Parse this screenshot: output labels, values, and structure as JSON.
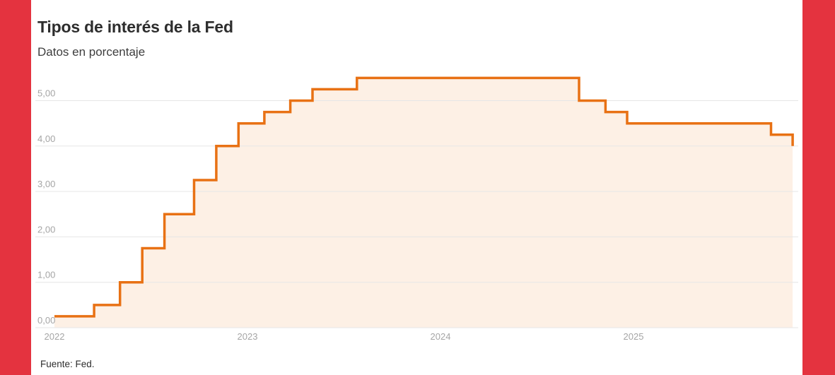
{
  "chart_data": {
    "type": "area",
    "variant": "step-after",
    "title": "Tipos de interés de la Fed",
    "subtitle": "Datos en porcentaje",
    "source": "Fuente: Fed.",
    "legend": "none",
    "grid": true,
    "x_axis": {
      "ticks": [
        2022,
        2023,
        2024,
        2025
      ],
      "tick_labels": [
        "2022",
        "2023",
        "2024",
        "2025"
      ],
      "range_years": [
        2022.0,
        2025.83
      ]
    },
    "y_axis": {
      "min": 0,
      "max": 5.5,
      "tick_step": 1,
      "tick_labels": [
        "0,00",
        "1,00",
        "2,00",
        "3,00",
        "4,00",
        "5,00"
      ],
      "tick_values": [
        0,
        1,
        2,
        3,
        4,
        5
      ]
    },
    "series": [
      {
        "name": "Tipo de interés de la Fed",
        "points": [
          {
            "date": "2022-01-01",
            "value": 0.25
          },
          {
            "date": "2022-03-17",
            "value": 0.5
          },
          {
            "date": "2022-05-05",
            "value": 1.0
          },
          {
            "date": "2022-06-16",
            "value": 1.75
          },
          {
            "date": "2022-07-28",
            "value": 2.5
          },
          {
            "date": "2022-09-22",
            "value": 3.25
          },
          {
            "date": "2022-11-03",
            "value": 4.0
          },
          {
            "date": "2022-12-15",
            "value": 4.5
          },
          {
            "date": "2023-02-02",
            "value": 4.75
          },
          {
            "date": "2023-03-23",
            "value": 5.0
          },
          {
            "date": "2023-05-04",
            "value": 5.25
          },
          {
            "date": "2023-07-27",
            "value": 5.5
          },
          {
            "date": "2024-09-19",
            "value": 5.0
          },
          {
            "date": "2024-11-08",
            "value": 4.75
          },
          {
            "date": "2024-12-19",
            "value": 4.5
          },
          {
            "date": "2025-09-18",
            "value": 4.25
          },
          {
            "date": "2025-10-29",
            "value": 4.0
          }
        ]
      }
    ],
    "colors": {
      "line": "#e87114",
      "area_fill": "#fdf0e5",
      "grid": "#e6e6e6",
      "axis_text": "#a5a5a5",
      "accent_red": "#e4333f",
      "title_text": "#2d2d2d"
    }
  }
}
